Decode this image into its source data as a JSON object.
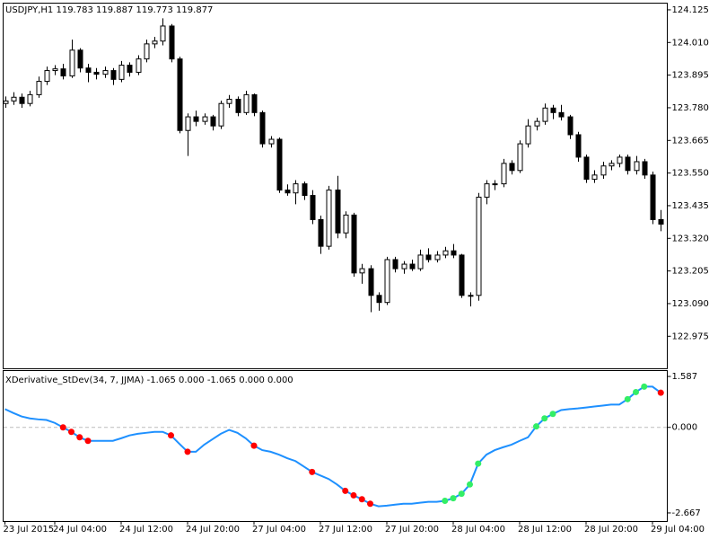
{
  "chart_data": [
    {
      "type": "candlestick",
      "title": "USDJPY,H1  119.783 119.887 119.773 119.877",
      "up_color": "#ffffff",
      "down_color": "#000000",
      "wick_color": "#000000",
      "ylim": [
        122.862,
        124.147
      ],
      "yticks": [
        124.125,
        {
          "value": 124.01,
          "label": "124.010"
        },
        123.895,
        {
          "value": 123.78,
          "label": "123.780"
        },
        123.665,
        {
          "value": 123.55,
          "label": "123.550"
        },
        123.435,
        {
          "value": 123.32,
          "label": "123.320"
        },
        123.205,
        {
          "value": 123.09,
          "label": "123.090"
        },
        122.975
      ],
      "open": [
        123.795,
        123.804,
        123.817,
        123.795,
        123.826,
        123.873,
        123.911,
        123.917,
        123.892,
        123.983,
        123.92,
        123.905,
        123.898,
        123.911,
        123.88,
        123.93,
        123.905,
        123.952,
        124.005,
        124.015,
        124.068,
        123.952,
        123.7,
        123.748,
        123.732,
        123.748,
        123.716,
        123.795,
        123.81,
        123.763,
        123.826,
        123.763,
        123.653,
        123.669,
        123.49,
        123.48,
        123.512,
        123.471,
        123.386,
        123.292,
        123.49,
        123.339,
        123.402,
        123.198,
        123.213,
        123.119,
        123.094,
        123.245,
        123.213,
        123.229,
        123.213,
        123.261,
        123.245,
        123.261,
        123.276,
        123.261,
        123.119,
        123.119,
        123.465,
        123.512,
        123.512,
        123.584,
        123.559,
        123.653,
        123.716,
        123.732,
        123.779,
        123.763,
        123.748,
        123.685,
        123.606,
        123.528,
        123.543,
        123.575,
        123.584,
        123.606,
        123.559,
        123.59,
        123.543,
        123.386
      ],
      "high": [
        123.82,
        123.835,
        123.83,
        123.84,
        123.89,
        123.925,
        123.93,
        123.935,
        124.02,
        123.99,
        123.935,
        123.92,
        123.925,
        123.92,
        123.945,
        123.94,
        123.965,
        124.02,
        124.03,
        124.095,
        124.075,
        123.96,
        123.76,
        123.77,
        123.76,
        123.755,
        123.805,
        123.825,
        123.82,
        123.84,
        123.83,
        123.77,
        123.68,
        123.675,
        123.51,
        123.525,
        123.52,
        123.49,
        123.4,
        123.505,
        123.54,
        123.415,
        123.41,
        123.23,
        123.225,
        123.13,
        123.255,
        123.255,
        123.24,
        123.245,
        123.28,
        123.285,
        123.275,
        123.29,
        123.3,
        123.265,
        123.13,
        123.48,
        123.525,
        123.525,
        123.6,
        123.595,
        123.665,
        123.74,
        123.745,
        123.795,
        123.79,
        123.79,
        123.755,
        123.695,
        123.615,
        123.56,
        123.59,
        123.595,
        123.615,
        123.615,
        123.61,
        123.6,
        123.555,
        123.42
      ],
      "low": [
        123.78,
        123.79,
        123.78,
        123.785,
        123.815,
        123.86,
        123.895,
        123.88,
        123.885,
        123.905,
        123.87,
        123.88,
        123.885,
        123.86,
        123.87,
        123.89,
        123.895,
        123.94,
        123.99,
        124.0,
        123.94,
        123.69,
        123.61,
        123.715,
        123.72,
        123.7,
        123.705,
        123.78,
        123.75,
        123.755,
        123.75,
        123.64,
        123.64,
        123.48,
        123.47,
        123.44,
        123.455,
        123.37,
        123.265,
        123.28,
        123.32,
        123.32,
        123.185,
        123.16,
        123.06,
        123.065,
        123.085,
        123.2,
        123.195,
        123.205,
        123.205,
        123.235,
        123.235,
        123.25,
        123.25,
        123.11,
        123.08,
        123.1,
        123.44,
        123.49,
        123.5,
        123.545,
        123.55,
        123.64,
        123.7,
        123.72,
        123.74,
        123.735,
        123.67,
        123.59,
        123.515,
        123.515,
        123.53,
        123.56,
        123.57,
        123.545,
        123.545,
        123.53,
        123.37,
        123.345
      ],
      "close": [
        123.804,
        123.817,
        123.795,
        123.826,
        123.873,
        123.911,
        123.917,
        123.892,
        123.983,
        123.92,
        123.905,
        123.898,
        123.911,
        123.88,
        123.93,
        123.905,
        123.952,
        124.005,
        124.015,
        124.068,
        123.952,
        123.7,
        123.748,
        123.732,
        123.748,
        123.716,
        123.795,
        123.81,
        123.763,
        123.826,
        123.763,
        123.653,
        123.669,
        123.49,
        123.48,
        123.512,
        123.471,
        123.386,
        123.292,
        123.49,
        123.339,
        123.402,
        123.198,
        123.213,
        123.119,
        123.094,
        123.245,
        123.213,
        123.229,
        123.213,
        123.261,
        123.245,
        123.261,
        123.276,
        123.261,
        123.119,
        123.119,
        123.465,
        123.512,
        123.512,
        123.584,
        123.559,
        123.653,
        123.716,
        123.732,
        123.779,
        123.763,
        123.748,
        123.685,
        123.606,
        123.528,
        123.543,
        123.575,
        123.584,
        123.606,
        123.559,
        123.59,
        123.543,
        123.386,
        123.37
      ]
    },
    {
      "type": "line",
      "title": "XDerivative_StDev(34, 7, JJMA) -1.065 0.000 -1.065 0.000 0.000",
      "ylim": [
        -2.92,
        1.757
      ],
      "yticks": [
        1.587,
        {
          "value": 0,
          "label": "0.000"
        },
        -2.667
      ],
      "zero_line": true,
      "categories": [
        "23 Jul 2015",
        null,
        null,
        null,
        null,
        null,
        "24 Jul 04:00",
        null,
        null,
        null,
        null,
        null,
        null,
        null,
        "24 Jul 12:00",
        null,
        null,
        null,
        null,
        null,
        null,
        null,
        "24 Jul 20:00",
        null,
        null,
        null,
        null,
        null,
        null,
        null,
        "27 Jul 04:00",
        null,
        null,
        null,
        null,
        null,
        null,
        null,
        "27 Jul 12:00",
        null,
        null,
        null,
        null,
        null,
        null,
        null,
        "27 Jul 20:00",
        null,
        null,
        null,
        null,
        null,
        null,
        null,
        "28 Jul 04:00",
        null,
        null,
        null,
        null,
        null,
        null,
        null,
        "28 Jul 12:00",
        null,
        null,
        null,
        null,
        null,
        null,
        null,
        "28 Jul 20:00",
        null,
        null,
        null,
        null,
        null,
        null,
        null,
        "29 Jul 04:00",
        null
      ],
      "series": [
        {
          "style": "line",
          "color": "#1e90ff",
          "values": [
            0.57,
            0.45,
            0.34,
            0.28,
            0.25,
            0.23,
            0.14,
            0.0,
            -0.14,
            -0.31,
            -0.42,
            -0.42,
            -0.42,
            -0.42,
            -0.34,
            -0.25,
            -0.2,
            -0.17,
            -0.14,
            -0.14,
            -0.25,
            -0.51,
            -0.76,
            -0.76,
            -0.54,
            -0.37,
            -0.2,
            -0.08,
            -0.17,
            -0.34,
            -0.57,
            -0.71,
            -0.76,
            -0.85,
            -0.96,
            -1.05,
            -1.22,
            -1.39,
            -1.5,
            -1.61,
            -1.78,
            -1.98,
            -2.12,
            -2.24,
            -2.38,
            -2.46,
            -2.44,
            -2.41,
            -2.38,
            -2.38,
            -2.35,
            -2.32,
            -2.32,
            -2.29,
            -2.21,
            -2.07,
            -1.78,
            -1.13,
            -0.85,
            -0.71,
            -0.62,
            -0.54,
            -0.42,
            -0.31,
            0.03,
            0.28,
            0.42,
            0.54,
            0.57,
            0.59,
            0.62,
            0.65,
            0.68,
            0.71,
            0.71,
            0.88,
            1.1,
            1.27,
            1.27,
            1.08
          ]
        },
        {
          "style": "dots",
          "color": "#ff0000",
          "values": [
            null,
            null,
            null,
            null,
            null,
            null,
            null,
            0.0,
            -0.14,
            -0.31,
            -0.42,
            null,
            null,
            null,
            null,
            null,
            null,
            null,
            null,
            null,
            -0.25,
            null,
            -0.76,
            null,
            null,
            null,
            null,
            null,
            null,
            null,
            -0.57,
            null,
            null,
            null,
            null,
            null,
            null,
            -1.39,
            null,
            null,
            null,
            -1.98,
            -2.12,
            -2.24,
            -2.38,
            null,
            null,
            null,
            null,
            null,
            null,
            null,
            null,
            null,
            null,
            null,
            null,
            null,
            null,
            null,
            null,
            null,
            null,
            null,
            null,
            null,
            null,
            null,
            null,
            null,
            null,
            null,
            null,
            null,
            null,
            null,
            null,
            null,
            null,
            1.08
          ]
        },
        {
          "style": "dots",
          "color": "#33ee66",
          "values": [
            null,
            null,
            null,
            null,
            null,
            null,
            null,
            null,
            null,
            null,
            null,
            null,
            null,
            null,
            null,
            null,
            null,
            null,
            null,
            null,
            null,
            null,
            null,
            null,
            null,
            null,
            null,
            null,
            null,
            null,
            null,
            null,
            null,
            null,
            null,
            null,
            null,
            null,
            null,
            null,
            null,
            null,
            null,
            null,
            null,
            null,
            null,
            null,
            null,
            null,
            null,
            null,
            null,
            -2.29,
            -2.21,
            -2.07,
            -1.78,
            -1.13,
            null,
            null,
            null,
            null,
            null,
            null,
            0.03,
            0.28,
            0.42,
            null,
            null,
            null,
            null,
            null,
            null,
            null,
            null,
            0.88,
            1.1,
            1.27,
            null,
            null
          ]
        }
      ]
    }
  ]
}
